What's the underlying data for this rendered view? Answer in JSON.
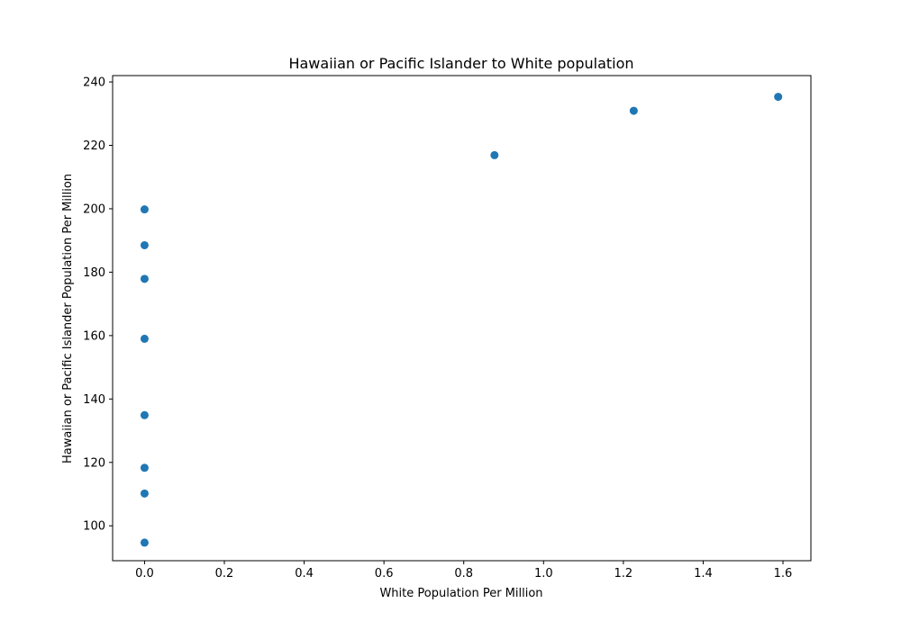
{
  "chart_data": {
    "type": "scatter",
    "title": "Hawaiian or Pacific Islander to White population",
    "xlabel": "White Population Per Million",
    "ylabel": "Hawaiian or Pacific Islander Population Per Million",
    "xlim": [
      -0.08,
      1.67
    ],
    "ylim": [
      89,
      242
    ],
    "xticks": [
      0.0,
      0.2,
      0.4,
      0.6,
      0.8,
      1.0,
      1.2,
      1.4,
      1.6
    ],
    "xtick_labels": [
      "0.0",
      "0.2",
      "0.4",
      "0.6",
      "0.8",
      "1.0",
      "1.2",
      "1.4",
      "1.6"
    ],
    "yticks": [
      100,
      120,
      140,
      160,
      180,
      200,
      220,
      240
    ],
    "ytick_labels": [
      "100",
      "120",
      "140",
      "160",
      "180",
      "200",
      "220",
      "240"
    ],
    "grid": false,
    "marker_color": "#1f77b4",
    "points": [
      {
        "x": 0.0,
        "y": 94.7
      },
      {
        "x": 0.0,
        "y": 110.2
      },
      {
        "x": 0.0,
        "y": 118.3
      },
      {
        "x": 0.0,
        "y": 134.9
      },
      {
        "x": 0.0,
        "y": 159.0
      },
      {
        "x": 0.0,
        "y": 177.9
      },
      {
        "x": 0.0,
        "y": 188.5
      },
      {
        "x": 0.0,
        "y": 199.8
      },
      {
        "x": 0.877,
        "y": 216.9
      },
      {
        "x": 1.226,
        "y": 230.9
      },
      {
        "x": 1.588,
        "y": 235.3
      }
    ]
  }
}
